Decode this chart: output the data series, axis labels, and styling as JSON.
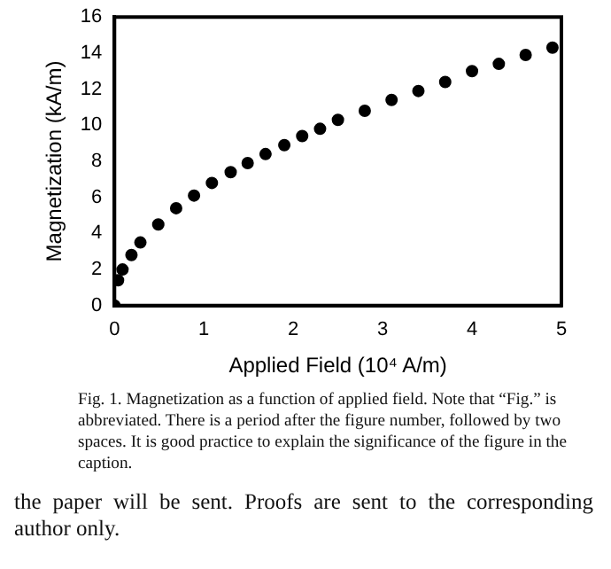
{
  "chart_data": {
    "type": "scatter",
    "xlabel": "Applied Field (10⁴ A/m)",
    "ylabel": "Magnetization (kA/m)",
    "x": [
      0,
      0.04,
      0.09,
      0.19,
      0.29,
      0.49,
      0.69,
      0.89,
      1.09,
      1.3,
      1.49,
      1.69,
      1.9,
      2.1,
      2.3,
      2.5,
      2.8,
      3.1,
      3.4,
      3.7,
      4.0,
      4.3,
      4.6,
      4.9
    ],
    "series": [
      {
        "color": "#000000",
        "values": [
          0,
          1.4,
          2.0,
          2.8,
          3.5,
          4.5,
          5.4,
          6.1,
          6.8,
          7.4,
          7.9,
          8.4,
          8.9,
          9.4,
          9.8,
          10.3,
          10.8,
          11.4,
          11.9,
          12.4,
          13.0,
          13.4,
          13.9,
          14.3
        ]
      }
    ],
    "xlim": [
      0,
      5
    ],
    "xticks": [
      0,
      1,
      2,
      3,
      4,
      5
    ],
    "ylim": [
      0,
      16
    ],
    "yticks": [
      0,
      2,
      4,
      6,
      8,
      10,
      12,
      14,
      16
    ],
    "marker": "circle",
    "annotations": [
      "Fig. 1.  Magnetization as a function of applied field. Note that “Fig.” is abbreviated. There is a period after the figure number, followed by two spaces. It is good practice to explain the significance of the figure in the caption.",
      "the paper will be sent. Proofs are sent to the corresponding author only."
    ]
  }
}
